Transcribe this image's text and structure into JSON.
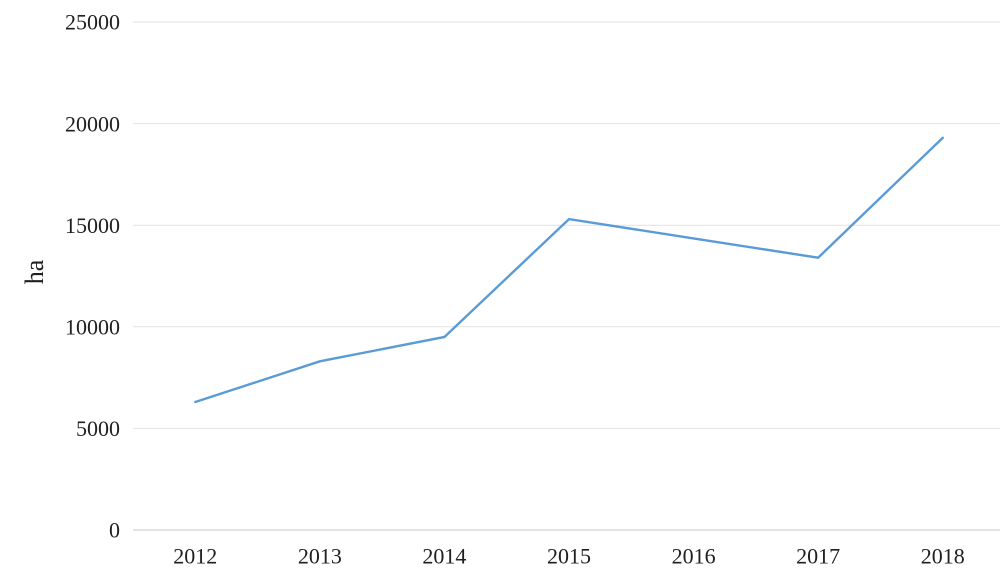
{
  "chart_data": {
    "type": "line",
    "title": "",
    "xlabel": "",
    "ylabel": "ha",
    "categories": [
      "2012",
      "2013",
      "2014",
      "2015",
      "2016",
      "2017",
      "2018"
    ],
    "series": [
      {
        "name": "ha",
        "values": [
          6300,
          8300,
          9500,
          15300,
          14350,
          13400,
          19300
        ]
      }
    ],
    "ylim": [
      0,
      25000
    ],
    "ytick_step": 5000,
    "yticks": [
      "0",
      "5000",
      "10000",
      "15000",
      "20000",
      "25000"
    ],
    "grid": true,
    "legend": false,
    "colors": {
      "line": "#5B9BD5",
      "gridline": "#E2E2E2",
      "axis_line": "#C6C6C6",
      "text": "#1f1f1f"
    }
  }
}
